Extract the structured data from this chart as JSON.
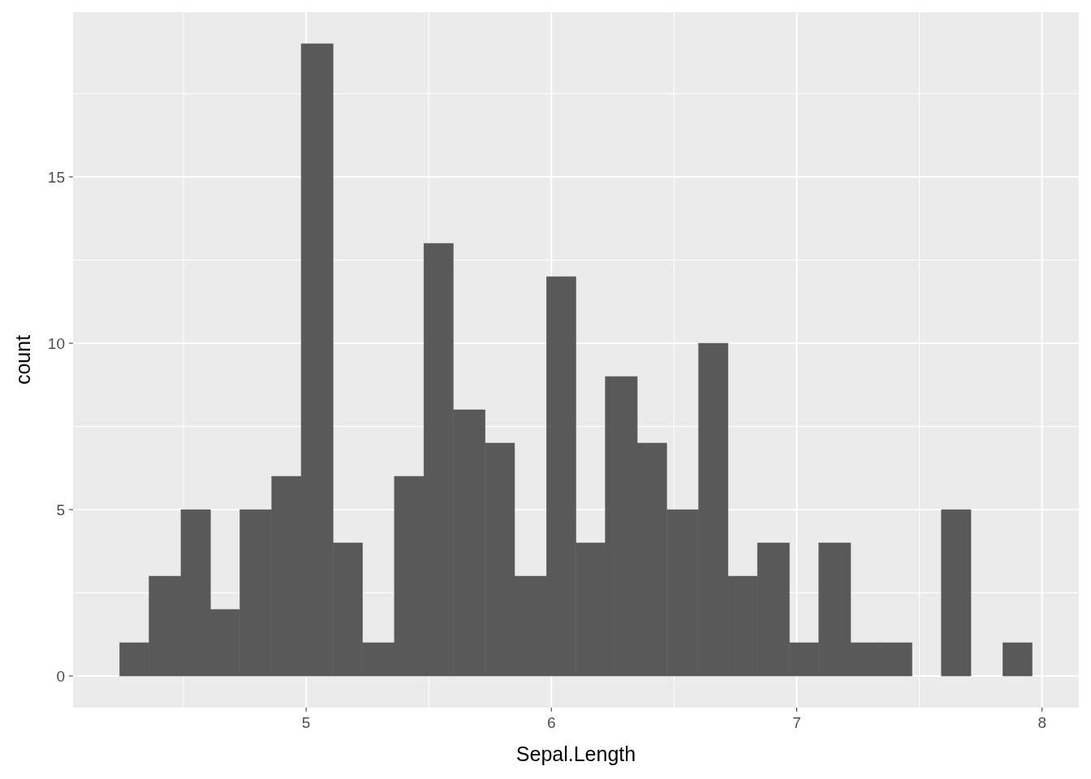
{
  "chart_data": {
    "type": "histogram",
    "xlabel": "Sepal.Length",
    "ylabel": "count",
    "bins": [
      4.24,
      4.36,
      4.49,
      4.61,
      4.73,
      4.86,
      4.98,
      5.11,
      5.23,
      5.36,
      5.48,
      5.6,
      5.73,
      5.85,
      5.98,
      6.1,
      6.22,
      6.35,
      6.47,
      6.6,
      6.72,
      6.84,
      6.97,
      7.09,
      7.22,
      7.34,
      7.47,
      7.59,
      7.71,
      7.84,
      7.96
    ],
    "values": [
      1,
      3,
      5,
      2,
      5,
      6,
      19,
      4,
      1,
      6,
      13,
      8,
      7,
      3,
      12,
      4,
      9,
      7,
      5,
      10,
      3,
      4,
      1,
      4,
      1,
      1,
      0,
      5,
      0,
      1
    ],
    "color": "#595959",
    "xlim": [
      4.05,
      8.15
    ],
    "ylim": [
      -0.95,
      19.95
    ],
    "xticks": [
      5,
      6,
      7,
      8
    ],
    "yticks": [
      0,
      5,
      10,
      15
    ],
    "grid": true
  }
}
